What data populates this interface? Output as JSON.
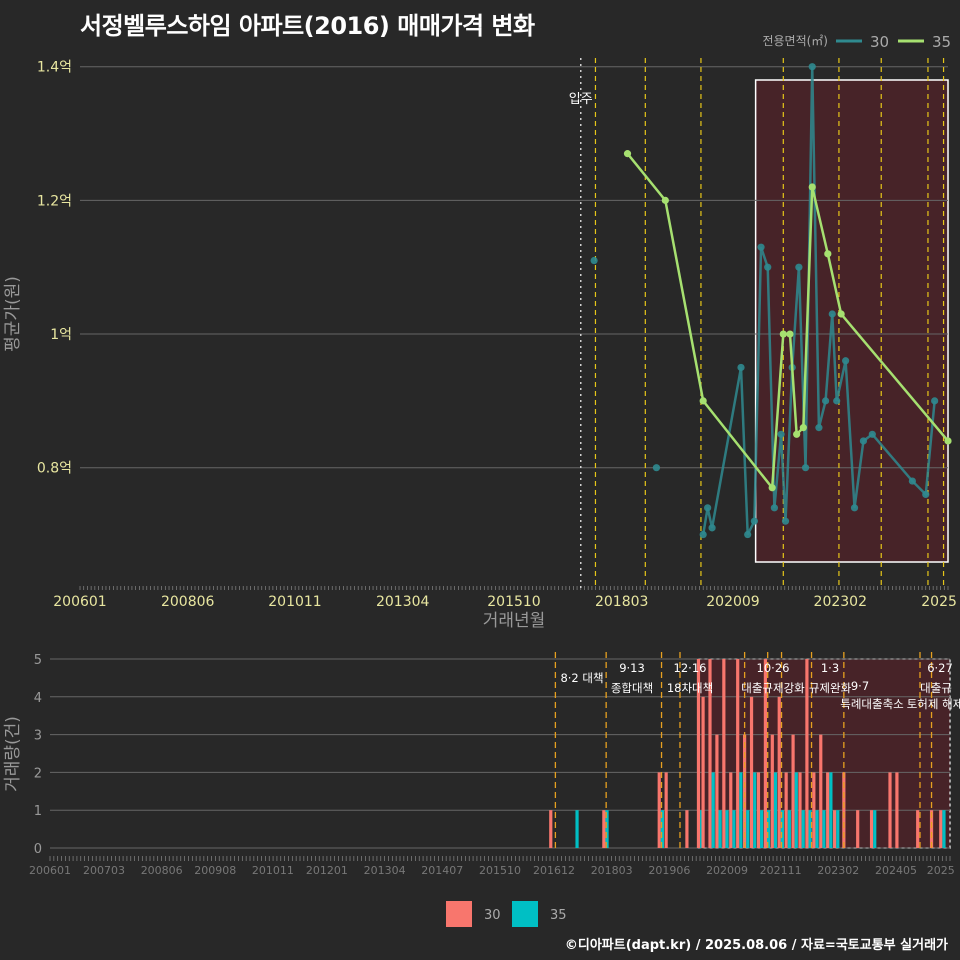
{
  "title": "서정벨루스하임 아파트(2016) 매매가격 변화",
  "footer": "©디아파트(dapt.kr) / 2025.08.06 / 자료=국토교통부 실거래가",
  "colors": {
    "series30": "#2f8a8f",
    "series35": "#a6e070",
    "bar30": "#f8766d",
    "bar35": "#00bfc4",
    "policy": "#e6c619",
    "policy2": "#e6a020",
    "highlight": "#5a2a30"
  },
  "chart_data": [
    {
      "type": "line",
      "ylabel": "평균가(원)",
      "xlabel": "거래년월",
      "x_ticks": [
        "200601",
        "200806",
        "201011",
        "201304",
        "201510",
        "201803",
        "202009",
        "202302",
        "2025"
      ],
      "y_ticks": [
        "0.8억",
        "1억",
        "1.2억",
        "1.4억"
      ],
      "ylim": [
        0.62,
        1.44
      ],
      "xlim": [
        2006.0,
        2025.5
      ],
      "legend": {
        "title": "전용면적(㎡)",
        "entries": [
          "30",
          "35"
        ]
      },
      "annotation_move_in": "입주",
      "move_in_x": 2017.25,
      "policy_lines_x": [
        2017.58,
        2018.7,
        2019.95,
        2021.8,
        2023.05,
        2024.0,
        2025.05,
        2025.4
      ],
      "highlight_range": [
        2020.1,
        2025.5
      ],
      "series": [
        {
          "name": "35",
          "points": [
            [
              2018.3,
              1.27
            ],
            [
              2019.15,
              1.2
            ],
            [
              2020.0,
              0.9
            ],
            [
              2021.55,
              0.77
            ],
            [
              2021.8,
              1.0
            ],
            [
              2021.95,
              1.0
            ],
            [
              2022.1,
              0.85
            ],
            [
              2022.25,
              0.86
            ],
            [
              2022.45,
              1.22
            ],
            [
              2022.8,
              1.12
            ],
            [
              2023.1,
              1.03
            ],
            [
              2025.5,
              0.84
            ]
          ]
        },
        {
          "name": "30",
          "points": [
            [
              2017.55,
              1.11
            ],
            [
              2018.95,
              0.8
            ],
            [
              2020.0,
              0.7
            ],
            [
              2020.1,
              0.74
            ],
            [
              2020.2,
              0.71
            ],
            [
              2020.85,
              0.95
            ],
            [
              2021.0,
              0.7
            ],
            [
              2021.15,
              0.72
            ],
            [
              2021.3,
              1.13
            ],
            [
              2021.45,
              1.1
            ],
            [
              2021.6,
              0.74
            ],
            [
              2021.75,
              0.85
            ],
            [
              2021.85,
              0.72
            ],
            [
              2022.0,
              0.95
            ],
            [
              2022.15,
              1.1
            ],
            [
              2022.3,
              0.8
            ],
            [
              2022.45,
              1.4
            ],
            [
              2022.6,
              0.86
            ],
            [
              2022.75,
              0.9
            ],
            [
              2022.9,
              1.03
            ],
            [
              2023.0,
              0.9
            ],
            [
              2023.2,
              0.96
            ],
            [
              2023.4,
              0.74
            ],
            [
              2023.6,
              0.84
            ],
            [
              2023.8,
              0.85
            ],
            [
              2024.7,
              0.78
            ],
            [
              2025.0,
              0.76
            ],
            [
              2025.2,
              0.9
            ]
          ]
        }
      ]
    },
    {
      "type": "bar",
      "ylabel": "거래량(건)",
      "y_ticks": [
        "0",
        "1",
        "2",
        "3",
        "4",
        "5"
      ],
      "ylim": [
        0,
        5
      ],
      "x_ticks": [
        "200601",
        "200703",
        "200806",
        "200908",
        "201011",
        "201201",
        "201304",
        "201407",
        "201510",
        "201612",
        "201803",
        "201906",
        "202009",
        "202111",
        "202302",
        "202405",
        "2025"
      ],
      "legend_entries": [
        "30",
        "35"
      ],
      "policies": [
        {
          "date": "8·2 대책",
          "label": ""
        },
        {
          "date": "9·13",
          "label": "종합대책"
        },
        {
          "date": "12·16",
          "label": "18차대책"
        },
        {
          "date": "10·26",
          "label": "대출규제강화"
        },
        {
          "date": "1·3",
          "label": "규제완화"
        },
        {
          "date": "9·7",
          "label": "특례대출축소"
        },
        {
          "date": "6·27",
          "label": "대출규"
        },
        {
          "date": "",
          "label": "토허제 해제"
        }
      ],
      "bars": [
        {
          "x": 2016.85,
          "v30": 1,
          "v35": 0
        },
        {
          "x": 2017.35,
          "v30": 0,
          "v35": 1
        },
        {
          "x": 2018.0,
          "v30": 1,
          "v35": 1
        },
        {
          "x": 2019.2,
          "v30": 2,
          "v35": 1
        },
        {
          "x": 2019.35,
          "v30": 2,
          "v35": 0
        },
        {
          "x": 2019.8,
          "v30": 1,
          "v35": 0
        },
        {
          "x": 2020.05,
          "v30": 5,
          "v35": 1
        },
        {
          "x": 2020.15,
          "v30": 4,
          "v35": 0
        },
        {
          "x": 2020.3,
          "v30": 5,
          "v35": 2
        },
        {
          "x": 2020.45,
          "v30": 3,
          "v35": 1
        },
        {
          "x": 2020.6,
          "v30": 5,
          "v35": 1
        },
        {
          "x": 2020.75,
          "v30": 2,
          "v35": 1
        },
        {
          "x": 2020.9,
          "v30": 5,
          "v35": 2
        },
        {
          "x": 2021.05,
          "v30": 3,
          "v35": 1
        },
        {
          "x": 2021.2,
          "v30": 4,
          "v35": 2
        },
        {
          "x": 2021.35,
          "v30": 2,
          "v35": 1
        },
        {
          "x": 2021.5,
          "v30": 5,
          "v35": 1
        },
        {
          "x": 2021.65,
          "v30": 3,
          "v35": 2
        },
        {
          "x": 2021.8,
          "v30": 4,
          "v35": 1
        },
        {
          "x": 2021.95,
          "v30": 2,
          "v35": 1
        },
        {
          "x": 2022.1,
          "v30": 3,
          "v35": 2
        },
        {
          "x": 2022.25,
          "v30": 2,
          "v35": 1
        },
        {
          "x": 2022.4,
          "v30": 5,
          "v35": 1
        },
        {
          "x": 2022.55,
          "v30": 2,
          "v35": 1
        },
        {
          "x": 2022.7,
          "v30": 3,
          "v35": 1
        },
        {
          "x": 2022.85,
          "v30": 2,
          "v35": 2
        },
        {
          "x": 2023.0,
          "v30": 1,
          "v35": 1
        },
        {
          "x": 2023.2,
          "v30": 2,
          "v35": 0
        },
        {
          "x": 2023.5,
          "v30": 1,
          "v35": 0
        },
        {
          "x": 2023.8,
          "v30": 1,
          "v35": 1
        },
        {
          "x": 2024.2,
          "v30": 2,
          "v35": 0
        },
        {
          "x": 2024.35,
          "v30": 2,
          "v35": 0
        },
        {
          "x": 2024.8,
          "v30": 1,
          "v35": 0
        },
        {
          "x": 2025.1,
          "v30": 1,
          "v35": 0
        },
        {
          "x": 2025.3,
          "v30": 1,
          "v35": 1
        }
      ]
    }
  ]
}
